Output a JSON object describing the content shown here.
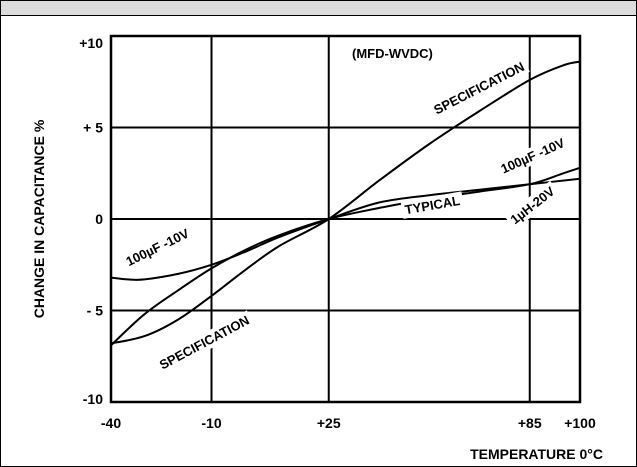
{
  "chart_data": {
    "type": "line",
    "title": "",
    "xlabel": "TEMPERATURE 0°C",
    "ylabel": "CHANGE IN CAPACITANCE %",
    "annotation": "(MFD-WVDC)",
    "xlim": [
      -40,
      100
    ],
    "ylim": [
      -10,
      10
    ],
    "x_ticks": [
      {
        "value": -40,
        "label": "-40"
      },
      {
        "value": -10,
        "label": "-10"
      },
      {
        "value": 25,
        "label": "+25"
      },
      {
        "value": 85,
        "label": "+85"
      },
      {
        "value": 100,
        "label": "+100"
      }
    ],
    "y_ticks": [
      {
        "value": 10,
        "label": "+10"
      },
      {
        "value": 5,
        "label": "+ 5"
      },
      {
        "value": 0,
        "label": "0"
      },
      {
        "value": -5,
        "label": "- 5"
      },
      {
        "value": -10,
        "label": "-10"
      }
    ],
    "grid": true,
    "series": [
      {
        "name": "SPECIFICATION",
        "points": [
          [
            -40,
            -6.8
          ],
          [
            -30,
            -6.4
          ],
          [
            -20,
            -5.5
          ],
          [
            -10,
            -4.2
          ],
          [
            0,
            -2.8
          ],
          [
            10,
            -1.5
          ],
          [
            25,
            0
          ],
          [
            40,
            2.1
          ],
          [
            55,
            4.1
          ],
          [
            70,
            5.9
          ],
          [
            85,
            7.6
          ],
          [
            95,
            8.4
          ],
          [
            100,
            8.6
          ]
        ]
      },
      {
        "name": "100µF -10V",
        "points": [
          [
            -40,
            -6.9
          ],
          [
            -30,
            -5.2
          ],
          [
            -20,
            -3.9
          ],
          [
            -10,
            -2.7
          ],
          [
            0,
            -1.7
          ],
          [
            10,
            -0.9
          ],
          [
            25,
            0
          ],
          [
            40,
            0.6
          ],
          [
            55,
            1.1
          ],
          [
            70,
            1.5
          ],
          [
            85,
            1.9
          ],
          [
            95,
            2.5
          ],
          [
            100,
            2.8
          ]
        ]
      },
      {
        "name": "TYPICAL 1µH-20V",
        "points": [
          [
            -40,
            -3.2
          ],
          [
            -35,
            -3.3
          ],
          [
            -30,
            -3.3
          ],
          [
            -20,
            -3.0
          ],
          [
            -10,
            -2.5
          ],
          [
            0,
            -1.8
          ],
          [
            10,
            -1.0
          ],
          [
            25,
            0
          ],
          [
            40,
            0.9
          ],
          [
            55,
            1.3
          ],
          [
            70,
            1.6
          ],
          [
            85,
            1.9
          ],
          [
            100,
            2.2
          ]
        ]
      }
    ],
    "labels": [
      {
        "text": "SPECIFICATION",
        "x": 70,
        "y": 7.1,
        "angle": -27
      },
      {
        "text": "100µF -10V",
        "x": 86,
        "y": 3.4,
        "angle": -24
      },
      {
        "text": "TYPICAL",
        "x": 56,
        "y": 0.7,
        "angle": -10
      },
      {
        "text": "1µH-20V",
        "x": 86,
        "y": 0.7,
        "angle": -38
      },
      {
        "text": "100µF -10V",
        "x": -26,
        "y": -1.6,
        "angle": -26
      },
      {
        "text": "SPECIFICATION",
        "x": -12,
        "y": -6.8,
        "angle": -28
      }
    ]
  }
}
